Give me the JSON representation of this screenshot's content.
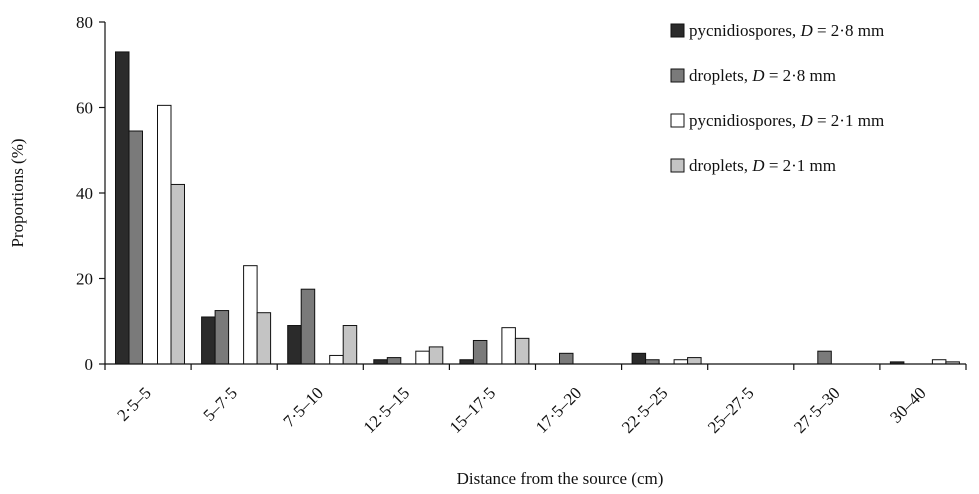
{
  "chart_data": {
    "type": "bar",
    "title": "",
    "xlabel": "Distance from the source (cm)",
    "ylabel": "Proportions (%)",
    "ylim": [
      0,
      80
    ],
    "yticks": [
      0,
      20,
      40,
      60,
      80
    ],
    "grid": false,
    "legend_position": "top-right",
    "categories": [
      "2·5–5",
      "5–7·5",
      "7·5–10",
      "12·5–15",
      "15–17·5",
      "17·5–20",
      "22·5–25",
      "25–27·5",
      "27·5–30",
      "30–40"
    ],
    "series": [
      {
        "legend_prefix": "pycnidiospores, ",
        "legend_var": "D",
        "legend_suffix": " = 2·8 mm",
        "color": "#2b2b2b",
        "values": [
          73,
          11,
          9,
          1,
          1,
          0,
          2.5,
          0,
          0,
          0.5
        ]
      },
      {
        "legend_prefix": "droplets, ",
        "legend_var": "D",
        "legend_suffix": " = 2·8 mm",
        "color": "#7a7a7a",
        "values": [
          54.5,
          12.5,
          17.5,
          1.5,
          5.5,
          2.5,
          1,
          0,
          3,
          0
        ]
      },
      {
        "legend_prefix": "pycnidiospores, ",
        "legend_var": "D",
        "legend_suffix": " = 2·1 mm",
        "color": "#ffffff",
        "values": [
          60.5,
          23,
          2,
          3,
          8.5,
          0,
          1,
          0,
          0,
          1
        ]
      },
      {
        "legend_prefix": "droplets, ",
        "legend_var": "D",
        "legend_suffix": " = 2·1 mm",
        "color": "#c4c4c4",
        "values": [
          42,
          12,
          9,
          4,
          6,
          0,
          1.5,
          0,
          0,
          0.5
        ]
      }
    ]
  }
}
